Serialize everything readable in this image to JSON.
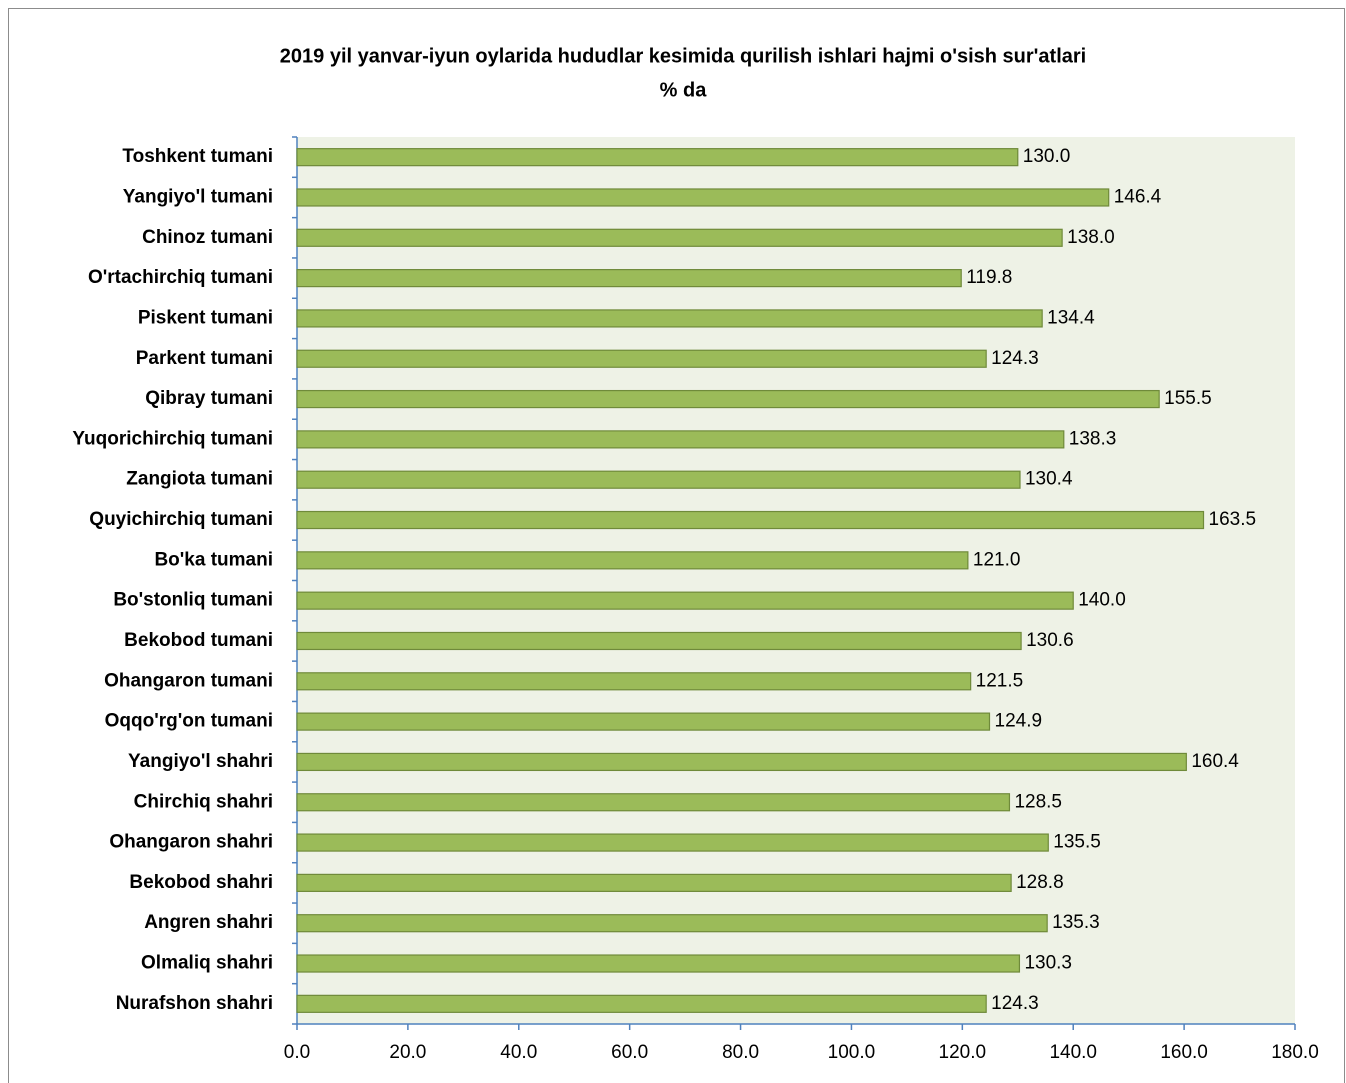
{
  "chart_data": {
    "type": "barh",
    "title": "2019 yil yanvar-iyun oylarida hududlar kesimida qurilish ishlari hajmi o'sish sur'atlari",
    "subtitle": "%  da",
    "categories": [
      "Toshkent tumani",
      "Yangiyo'l tumani",
      "Chinoz tumani",
      "O'rtachirchiq tumani",
      "Piskent tumani",
      "Parkent tumani",
      "Qibray tumani",
      "Yuqorichirchiq tumani",
      "Zangiota tumani",
      "Quyichirchiq tumani",
      "Bo'ka tumani",
      "Bo'stonliq tumani",
      "Bekobod tumani",
      "Ohangaron tumani",
      "Oqqo'rg'on tumani",
      "Yangiyo'l shahri",
      "Chirchiq shahri",
      "Ohangaron shahri",
      "Bekobod shahri",
      "Angren shahri",
      "Olmaliq shahri",
      "Nurafshon shahri"
    ],
    "values": [
      130.0,
      146.4,
      138.0,
      119.8,
      134.4,
      124.3,
      155.5,
      138.3,
      130.4,
      163.5,
      121.0,
      140.0,
      130.6,
      121.5,
      124.9,
      160.4,
      128.5,
      135.5,
      128.8,
      135.3,
      130.3,
      124.3
    ],
    "value_labels": [
      "130.0",
      "146.4",
      "138.0",
      "119.8",
      "134.4",
      "124.3",
      "155.5",
      "138.3",
      "130.4",
      "163.5",
      "121.0",
      "140.0",
      "130.6",
      "121.5",
      "124.9",
      "160.4",
      "128.5",
      "135.5",
      "128.8",
      "135.3",
      "130.3",
      "124.3"
    ],
    "color": "#9bbb59",
    "xlim": [
      0,
      180
    ],
    "xticks": [
      {
        "value": 0,
        "label": "0.0"
      },
      {
        "value": 20,
        "label": "20.0"
      },
      {
        "value": 40,
        "label": "40.0"
      },
      {
        "value": 60,
        "label": "60.0"
      },
      {
        "value": 80,
        "label": "80.0"
      },
      {
        "value": 100,
        "label": "100.0"
      },
      {
        "value": 120,
        "label": "120.0"
      },
      {
        "value": 140,
        "label": "140.0"
      },
      {
        "value": 160,
        "label": "160.0"
      },
      {
        "value": 180,
        "label": "180.0"
      }
    ],
    "grid": false
  }
}
